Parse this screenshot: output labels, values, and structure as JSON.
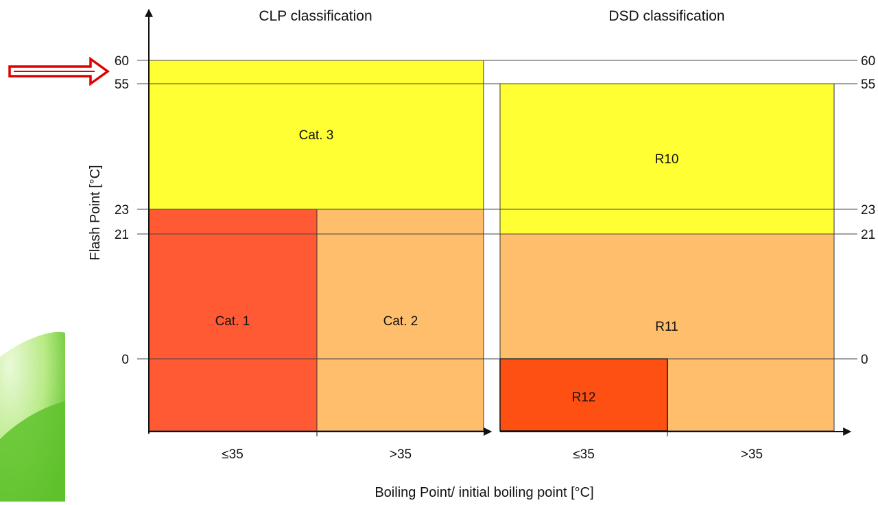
{
  "headings": {
    "clp": "CLP classification",
    "dsd": "DSD classification"
  },
  "y_axis_title": "Flash Point [°C]",
  "x_axis_title": "Boiling Point/ initial boiling point [°C]",
  "flash_point_thresholds": [
    "60",
    "55",
    "23",
    "21",
    "0"
  ],
  "boiling_point_groups": [
    "≤35",
    ">35"
  ],
  "clp": {
    "regions": [
      {
        "id": "cat3",
        "label": "Cat. 3",
        "color": "#ffff33",
        "fp_low": 23,
        "fp_high": 60,
        "bp_group": "all"
      },
      {
        "id": "cat1",
        "label": "Cat. 1",
        "color": "#ff5a33",
        "fp_low": null,
        "fp_high": 23,
        "bp_group": "≤35"
      },
      {
        "id": "cat2",
        "label": "Cat. 2",
        "color": "#ffbe6b",
        "fp_low": null,
        "fp_high": 23,
        "bp_group": ">35"
      }
    ]
  },
  "dsd": {
    "regions": [
      {
        "id": "r10",
        "label": "R10",
        "color": "#ffff33",
        "fp_low": 21,
        "fp_high": 55,
        "bp_group": "all"
      },
      {
        "id": "r11",
        "label": "R11",
        "color": "#ffbe6b",
        "fp_low": null,
        "fp_high": 21,
        "bp_group": "all"
      },
      {
        "id": "r12",
        "label": "R12",
        "color": "#ff5014",
        "fp_low": null,
        "fp_high": 0,
        "bp_group": "≤35"
      }
    ]
  },
  "colors": {
    "background": "#ffffff",
    "arrow": "#e00000",
    "decoration_green": "#5fc22c",
    "decoration_light": "#c9ef9f"
  },
  "highlight": {
    "icon": "right-arrow-icon",
    "points_to": "60"
  }
}
